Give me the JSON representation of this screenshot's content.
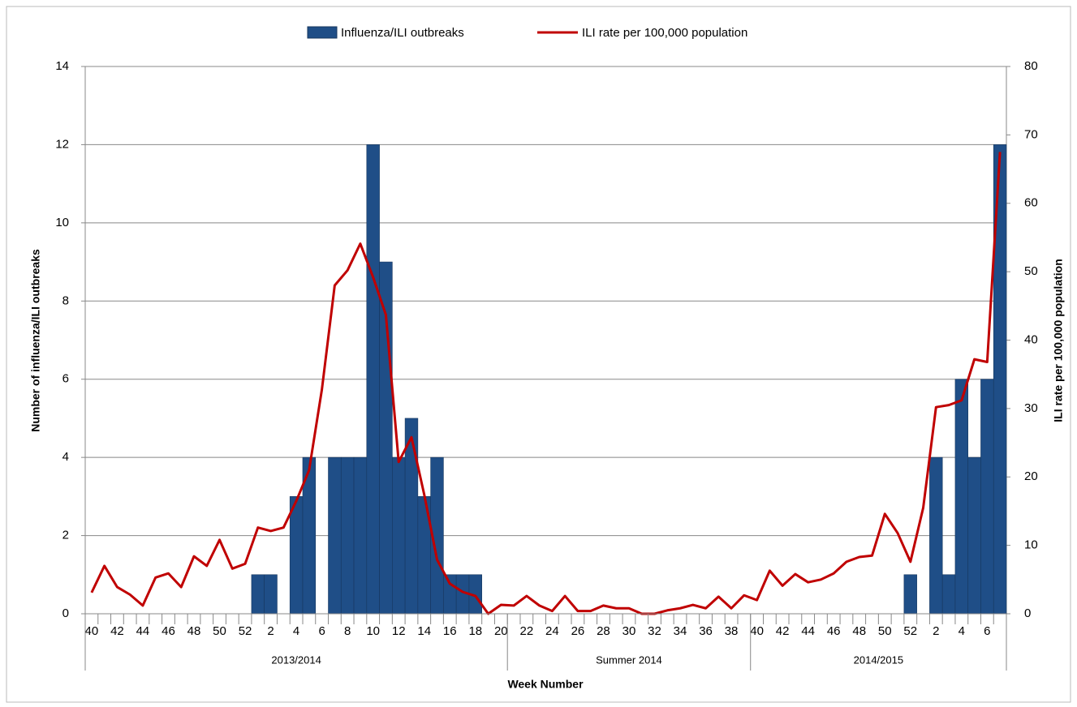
{
  "chart_data": {
    "type": "bar_line",
    "title_x": "Week Number",
    "ylabel": "Number of influenza/ILI outbreaks",
    "y2label": "ILI rate per 100,000 population",
    "categories": [
      "40",
      null,
      "42",
      null,
      "44",
      null,
      "46",
      null,
      "48",
      null,
      "50",
      null,
      "52",
      null,
      "2",
      null,
      "4",
      null,
      "6",
      null,
      "8",
      null,
      "10",
      null,
      "12",
      null,
      "14",
      null,
      "16",
      null,
      "18",
      null,
      "20",
      null,
      "22",
      null,
      "24",
      null,
      "26",
      null,
      "28",
      null,
      "30",
      null,
      "32",
      null,
      "34",
      null,
      "36",
      null,
      "38",
      null,
      "40",
      null,
      "42",
      null,
      "44",
      null,
      "46",
      null,
      "48",
      null,
      "50",
      null,
      "52",
      null,
      "2",
      null,
      "4",
      null,
      "6",
      null
    ],
    "groups": [
      "2013/2014",
      "Summer 2014",
      "2014/2015"
    ],
    "series": [
      {
        "name": "Influenza/ILI outbreaks",
        "type": "bar",
        "color": "#1f4e87",
        "values": [
          0,
          0,
          0,
          0,
          0,
          0,
          0,
          0,
          0,
          0,
          0,
          0,
          0,
          1,
          1,
          0,
          3,
          4,
          0,
          4,
          4,
          4,
          12,
          9,
          4,
          5,
          3,
          4,
          1,
          1,
          1,
          0,
          0,
          0,
          0,
          0,
          0,
          0,
          0,
          0,
          0,
          0,
          0,
          0,
          0,
          0,
          0,
          0,
          0,
          0,
          0,
          0,
          0,
          0,
          0,
          0,
          0,
          0,
          0,
          0,
          0,
          0,
          0,
          0,
          1,
          0,
          4,
          1,
          6,
          4,
          6,
          12
        ]
      },
      {
        "name": "ILI rate per 100,000 population",
        "type": "line",
        "axis": "y2",
        "color": "#c00000",
        "values": [
          3.1,
          7.0,
          3.9,
          2.8,
          1.2,
          5.3,
          5.9,
          3.9,
          8.4,
          7.0,
          10.8,
          6.6,
          7.3,
          12.6,
          12.1,
          12.6,
          16.5,
          21.0,
          32.8,
          48.0,
          50.2,
          54.1,
          49.2,
          43.7,
          22.2,
          25.8,
          17.4,
          7.9,
          4.4,
          3.2,
          2.6,
          0,
          1.3,
          1.2,
          2.6,
          1.2,
          0.4,
          2.6,
          0.4,
          0.4,
          1.2,
          0.8,
          0.8,
          0,
          0,
          0.5,
          0.8,
          1.3,
          0.8,
          2.5,
          0.8,
          2.7,
          2.0,
          6.3,
          4.1,
          5.8,
          4.6,
          5.0,
          5.9,
          7.6,
          8.3,
          8.5,
          14.6,
          11.8,
          7.6,
          15.5,
          30.2,
          30.5,
          31.2,
          37.2,
          36.8,
          67.5
        ]
      }
    ],
    "ylim": [
      0,
      14
    ],
    "yticks": [
      0,
      2,
      4,
      6,
      8,
      10,
      12,
      14
    ],
    "y2lim": [
      0,
      80
    ],
    "y2ticks": [
      0,
      10,
      20,
      30,
      40,
      50,
      60,
      70,
      80
    ],
    "grid": true
  }
}
